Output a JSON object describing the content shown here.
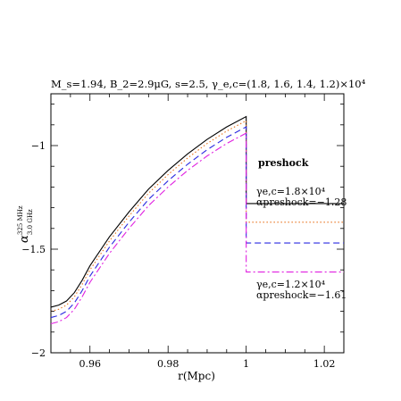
{
  "chart_data": {
    "type": "line",
    "title": "M_s=1.94, B_2=2.9μG, s=2.5, γ_e,c=(1.8, 1.6, 1.4, 1.2)×10⁴",
    "xlabel": "r(Mpc)",
    "ylabel": "α 325 MHz / 3.0 GHz",
    "xlim": [
      0.95,
      1.025
    ],
    "ylim": [
      -2,
      -0.75
    ],
    "xticks": [
      0.96,
      0.98,
      1,
      1.02
    ],
    "xtick_labels": [
      "0.96",
      "0.98",
      "1",
      "1.02"
    ],
    "yticks": [
      -2,
      -1.5,
      -1
    ],
    "ytick_labels": [
      "−2",
      "−1.5",
      "−1"
    ],
    "series": [
      {
        "color": "#000000",
        "dash": "",
        "x": [
          0.95,
          0.952,
          0.954,
          0.956,
          0.958,
          0.96,
          0.965,
          0.97,
          0.975,
          0.98,
          0.985,
          0.99,
          0.995,
          1.0
        ],
        "y": [
          -1.78,
          -1.77,
          -1.75,
          -1.71,
          -1.65,
          -1.58,
          -1.44,
          -1.32,
          -1.21,
          -1.12,
          -1.04,
          -0.97,
          -0.91,
          -0.86
        ],
        "preshock": -1.28
      },
      {
        "color": "#e8731c",
        "dash": "1.5,2.5",
        "x": [
          0.95,
          0.952,
          0.954,
          0.956,
          0.958,
          0.96,
          0.965,
          0.97,
          0.975,
          0.98,
          0.985,
          0.99,
          0.995,
          1.0
        ],
        "y": [
          -1.8,
          -1.79,
          -1.77,
          -1.73,
          -1.67,
          -1.6,
          -1.46,
          -1.34,
          -1.23,
          -1.14,
          -1.06,
          -0.99,
          -0.93,
          -0.88
        ],
        "preshock": -1.37
      },
      {
        "color": "#2a2ae0",
        "dash": "7,4",
        "x": [
          0.95,
          0.952,
          0.954,
          0.956,
          0.958,
          0.96,
          0.965,
          0.97,
          0.975,
          0.98,
          0.985,
          0.99,
          0.995,
          1.0
        ],
        "y": [
          -1.83,
          -1.82,
          -1.8,
          -1.76,
          -1.7,
          -1.63,
          -1.49,
          -1.37,
          -1.26,
          -1.17,
          -1.09,
          -1.02,
          -0.96,
          -0.91
        ],
        "preshock": -1.47
      },
      {
        "color": "#e020e0",
        "dash": "8,3,2,3",
        "x": [
          0.95,
          0.952,
          0.954,
          0.956,
          0.958,
          0.96,
          0.965,
          0.97,
          0.975,
          0.98,
          0.985,
          0.99,
          0.995,
          1.0
        ],
        "y": [
          -1.86,
          -1.85,
          -1.83,
          -1.79,
          -1.73,
          -1.66,
          -1.52,
          -1.4,
          -1.29,
          -1.2,
          -1.12,
          -1.05,
          -0.99,
          -0.94
        ],
        "preshock": -1.61
      }
    ],
    "annotations": {
      "preshock": "preshock",
      "upper_gamma": "γe,c=1.8×10⁴",
      "upper_alpha": "αpreshock=−1.28",
      "lower_gamma": "γe,c=1.2×10⁴",
      "lower_alpha": "αpreshock=−1.61"
    },
    "grid": false,
    "legend": "none"
  }
}
